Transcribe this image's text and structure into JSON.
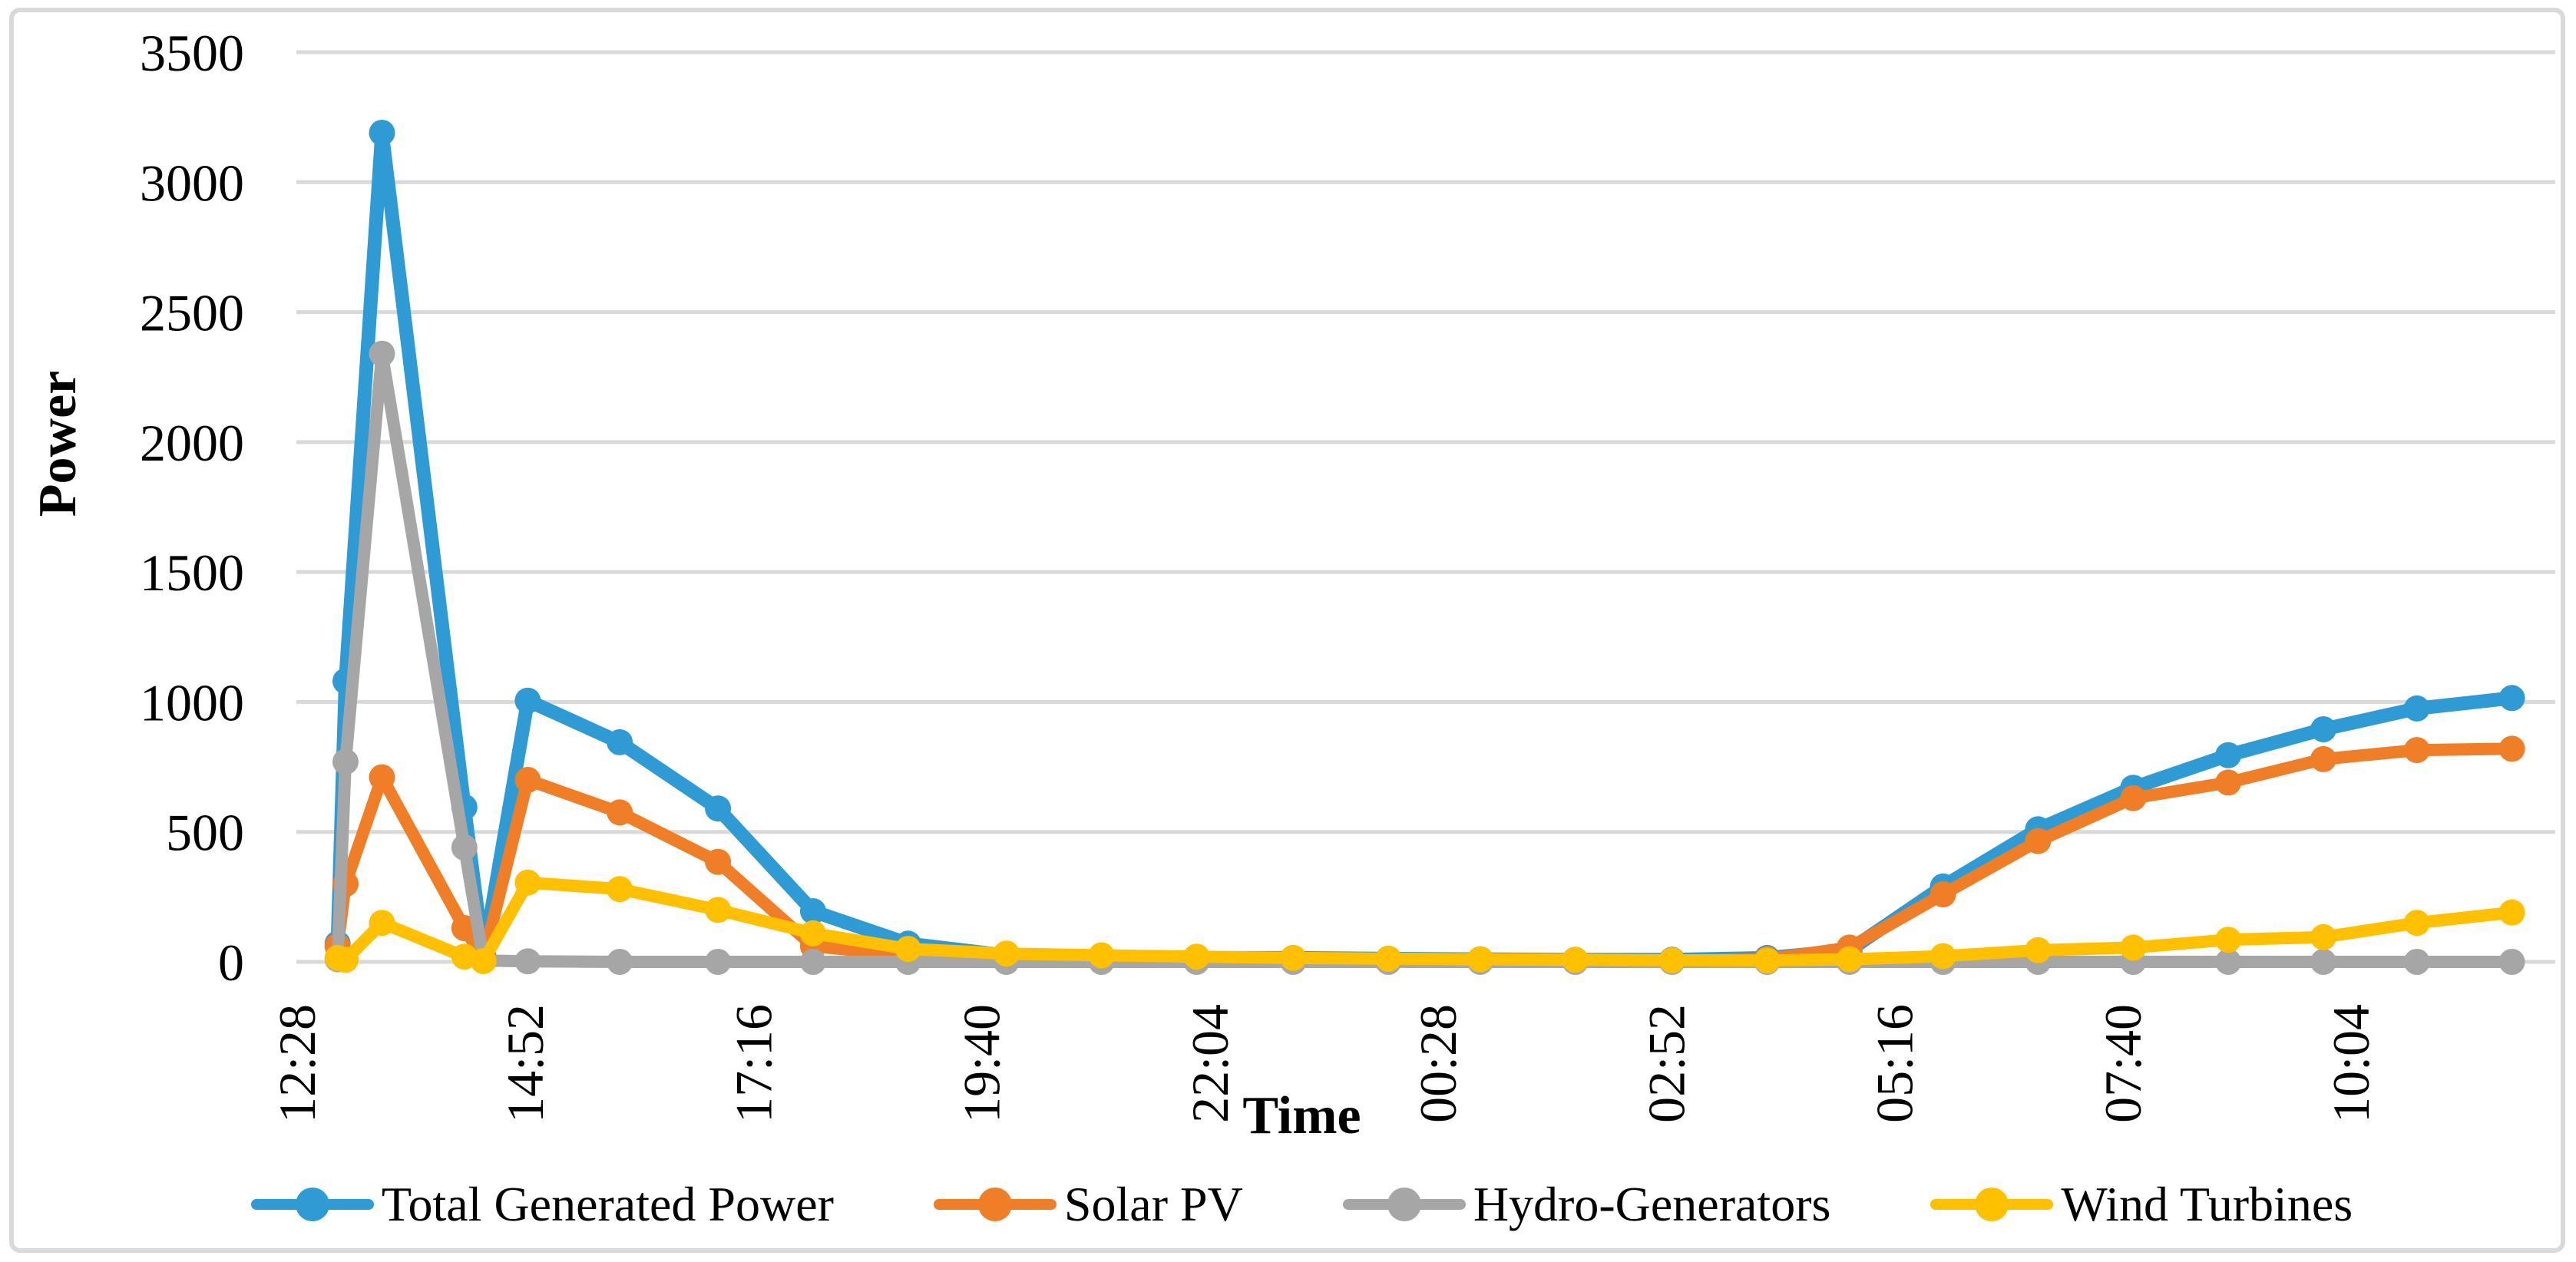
{
  "chart_data": {
    "type": "line",
    "title": "",
    "xlabel": "Time",
    "ylabel": "Power",
    "ylim": [
      0,
      3500
    ],
    "y_tick_step": 500,
    "y_tick_labels": [
      "0",
      "500",
      "1000",
      "1500",
      "2000",
      "2500",
      "3000",
      "3500"
    ],
    "x_tick_labels": [
      "12:28",
      "14:52",
      "17:16",
      "19:40",
      "22:04",
      "00:28",
      "02:52",
      "05:16",
      "07:40",
      "10:04"
    ],
    "x_tick_interval_minutes": 144,
    "grid": "horizontal",
    "legend_position": "bottom",
    "x_times": [
      "12:54",
      "12:59",
      "13:22",
      "14:14",
      "14:26",
      "14:54",
      "15:52",
      "16:54",
      "17:54",
      "18:54",
      "19:56",
      "20:56",
      "21:56",
      "22:57",
      "23:57",
      "00:55",
      "01:55",
      "02:56",
      "03:56",
      "04:48",
      "05:47",
      "06:47",
      "07:47",
      "08:47",
      "09:47",
      "10:46",
      "11:46"
    ],
    "x_minutes_since_axis_start": [
      26,
      31,
      54,
      106,
      118,
      146,
      204,
      266,
      326,
      386,
      448,
      508,
      568,
      629,
      689,
      747,
      807,
      868,
      928,
      980,
      1039,
      1099,
      1159,
      1219,
      1279,
      1338,
      1398
    ],
    "series": [
      {
        "name": "Total Generated Power",
        "color": "#2E9BD5",
        "line_width": 18,
        "values": [
          70,
          1080,
          3190,
          595,
          20,
          1005,
          845,
          590,
          195,
          70,
          25,
          20,
          15,
          15,
          12,
          10,
          8,
          8,
          15,
          45,
          290,
          510,
          670,
          795,
          895,
          975,
          1015
        ]
      },
      {
        "name": "Solar PV",
        "color": "#F07E26",
        "line_width": 16,
        "values": [
          60,
          300,
          710,
          130,
          10,
          700,
          575,
          385,
          60,
          25,
          10,
          8,
          5,
          5,
          5,
          3,
          3,
          3,
          10,
          55,
          260,
          465,
          630,
          690,
          780,
          815,
          820
        ]
      },
      {
        "name": "Hydro-Generators",
        "color": "#A6A6A6",
        "line_width": 16,
        "values": [
          10,
          770,
          2340,
          440,
          5,
          2,
          0,
          0,
          0,
          0,
          0,
          0,
          0,
          0,
          0,
          0,
          0,
          0,
          0,
          0,
          0,
          0,
          0,
          0,
          0,
          0,
          0
        ]
      },
      {
        "name": "Wind Turbines",
        "color": "#FFC000",
        "line_width": 16,
        "values": [
          15,
          8,
          150,
          20,
          3,
          305,
          280,
          200,
          110,
          50,
          32,
          25,
          20,
          15,
          12,
          10,
          8,
          6,
          5,
          10,
          22,
          45,
          55,
          85,
          95,
          150,
          190
        ]
      }
    ],
    "marker": {
      "shape": "circle",
      "radius": 17
    },
    "gridline_color": "#D9D9D9",
    "border_color": "#D9D9D9"
  }
}
